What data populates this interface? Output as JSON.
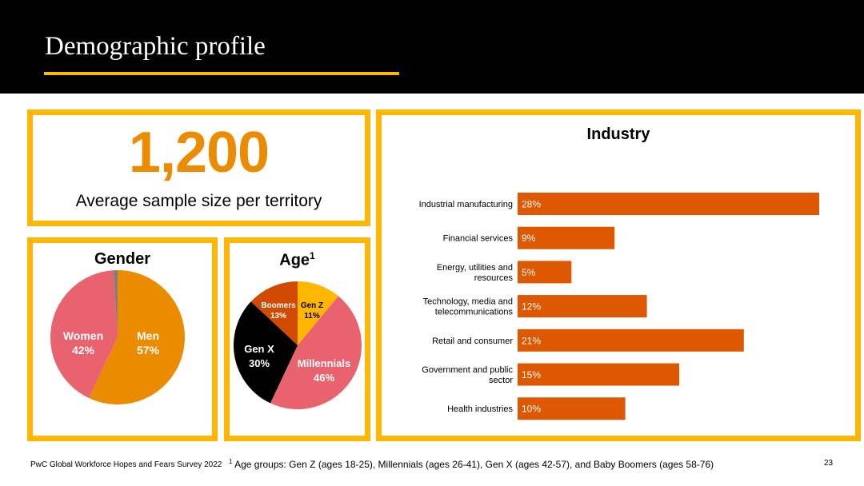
{
  "slide": {
    "title": "Demographic profile",
    "footer_source": "PwC Global Workforce Hopes and Fears Survey 2022",
    "footnote_marker": "1",
    "footnote": "Age groups: Gen Z (ages 18-25), Millennials (ages 26-41), Gen X (ages 42-57), and Baby Boomers (ages 58-76)",
    "page_number": "23"
  },
  "sample": {
    "value": "1,200",
    "label": "Average sample size per territory"
  },
  "colors": {
    "accent_yellow": "#FFB600",
    "orange": "#EB8C00",
    "rose": "#E8636E",
    "dark_orange": "#D04A02",
    "bar": "#DD5800",
    "black": "#000000",
    "grey": "#7F7F7F"
  },
  "chart_data": [
    {
      "type": "pie",
      "title": "Gender",
      "slices": [
        {
          "name": "Men",
          "value": 57,
          "label": "57%",
          "color": "#EB8C00"
        },
        {
          "name": "Women",
          "value": 42,
          "label": "42%",
          "color": "#E8636E"
        },
        {
          "name": "",
          "value": 1,
          "label": "",
          "color": "#7F7F7F"
        }
      ]
    },
    {
      "type": "pie",
      "title": "Age",
      "title_superscript": "1",
      "slices": [
        {
          "name": "Gen Z",
          "value": 11,
          "label": "11%",
          "color": "#FFB600"
        },
        {
          "name": "Millennials",
          "value": 46,
          "label": "46%",
          "color": "#E8636E"
        },
        {
          "name": "Gen X",
          "value": 30,
          "label": "30%",
          "color": "#000000"
        },
        {
          "name": "Boomers",
          "value": 13,
          "label": "13%",
          "color": "#D04A02"
        }
      ]
    },
    {
      "type": "bar",
      "orientation": "horizontal",
      "title": "Industry",
      "categories": [
        [
          "Industrial manufacturing"
        ],
        [
          "Financial services"
        ],
        [
          "Energy, utilities and",
          "resources"
        ],
        [
          "Technology, media and",
          "telecommunications"
        ],
        [
          "Retail and consumer"
        ],
        [
          "Government and public",
          "sector"
        ],
        [
          "Health industries"
        ]
      ],
      "values": [
        28,
        9,
        5,
        12,
        21,
        15,
        10
      ],
      "labels": [
        "28%",
        "9%",
        "5%",
        "12%",
        "21%",
        "15%",
        "10%"
      ],
      "xlim": [
        0,
        28
      ]
    }
  ]
}
